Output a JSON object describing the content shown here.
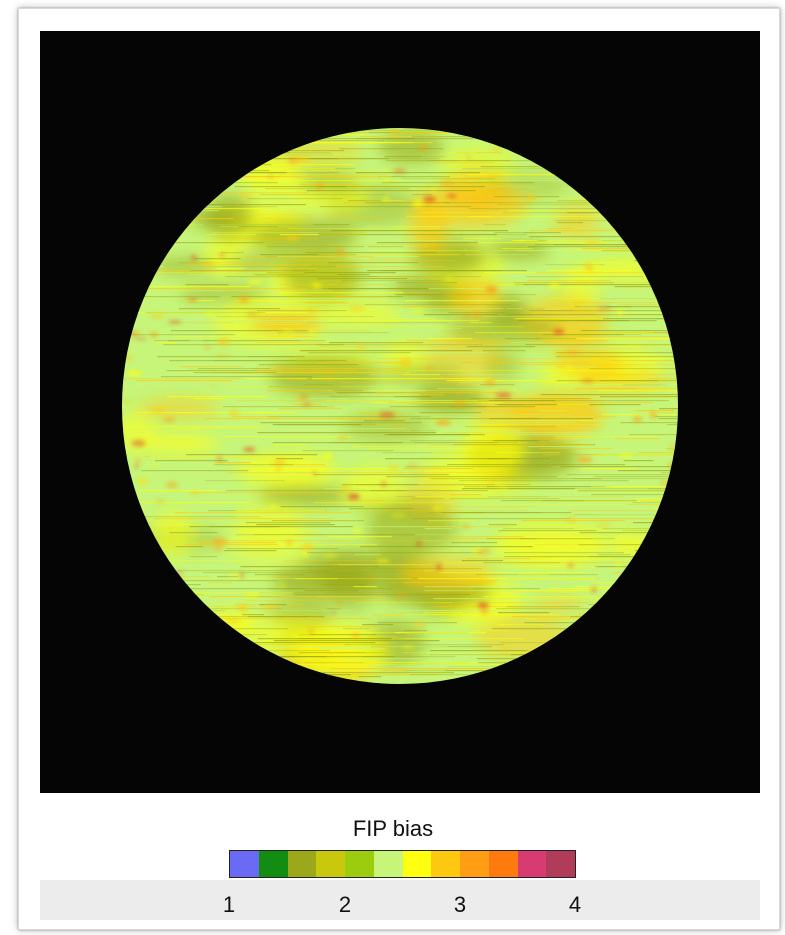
{
  "colorbar": {
    "title": "FIP bias",
    "ticks": [
      "1",
      "2",
      "3",
      "4"
    ],
    "range": [
      1,
      4
    ],
    "colors": [
      "#6a6af5",
      "#128c12",
      "#9aa81a",
      "#c8c80c",
      "#9ccc10",
      "#c6f57a",
      "#ffff10",
      "#ffc810",
      "#ff9e14",
      "#ff7a0e",
      "#d83a72",
      "#b03c5a"
    ]
  },
  "image": {
    "disk_base_color": "#c6f57a",
    "background_color": "#050505",
    "dominant_colors": [
      "#9aa81a",
      "#c6f57a",
      "#ffff10",
      "#ffc810",
      "#ff9e14"
    ]
  }
}
